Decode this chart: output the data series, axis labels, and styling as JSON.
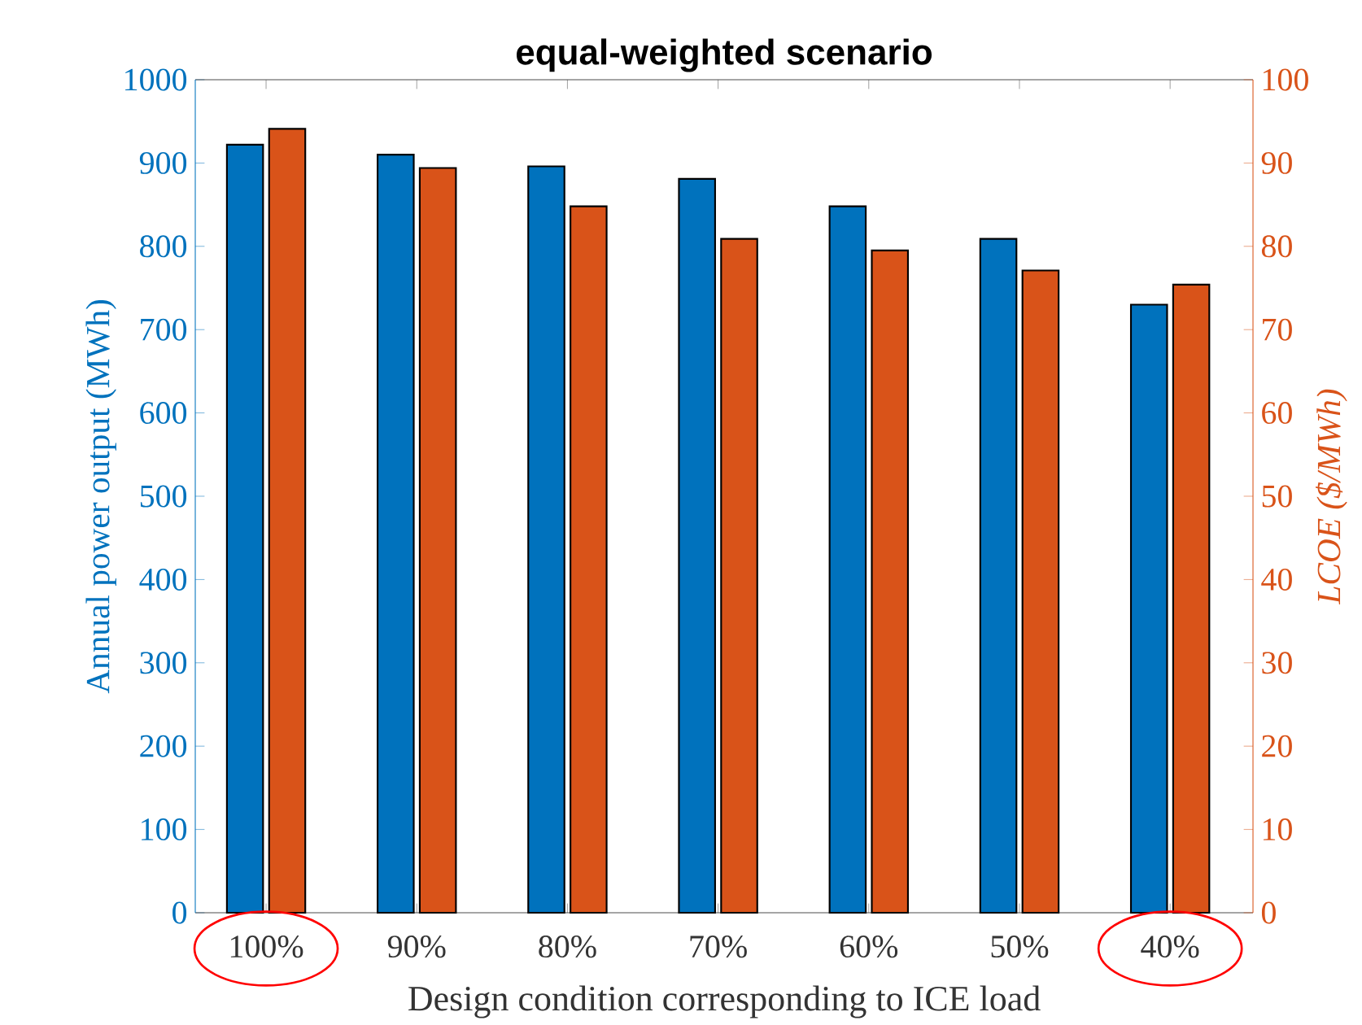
{
  "chart_data": {
    "type": "bar",
    "title": "equal-weighted scenario",
    "xlabel": "Design condition corresponding to ICE load",
    "ylabel": "Annual power output (MWh)",
    "y2label": "LCOE ($/MWh)",
    "categories": [
      "100%",
      "90%",
      "80%",
      "70%",
      "60%",
      "50%",
      "40%"
    ],
    "series": [
      {
        "color": "#0072bd",
        "values": [
          922,
          910,
          896,
          881,
          848,
          809,
          730
        ]
      },
      {
        "color": "#d95319",
        "axis": "y2",
        "values": [
          94.1,
          89.4,
          84.8,
          80.9,
          79.5,
          77.1,
          75.4
        ]
      }
    ],
    "ylim": [
      0,
      1000
    ],
    "yticks": [
      0,
      100,
      200,
      300,
      400,
      500,
      600,
      700,
      800,
      900,
      1000
    ],
    "y2lim": [
      0,
      100
    ],
    "y2ticks": [
      0,
      10,
      20,
      30,
      40,
      50,
      60,
      70,
      80,
      90,
      100
    ]
  }
}
